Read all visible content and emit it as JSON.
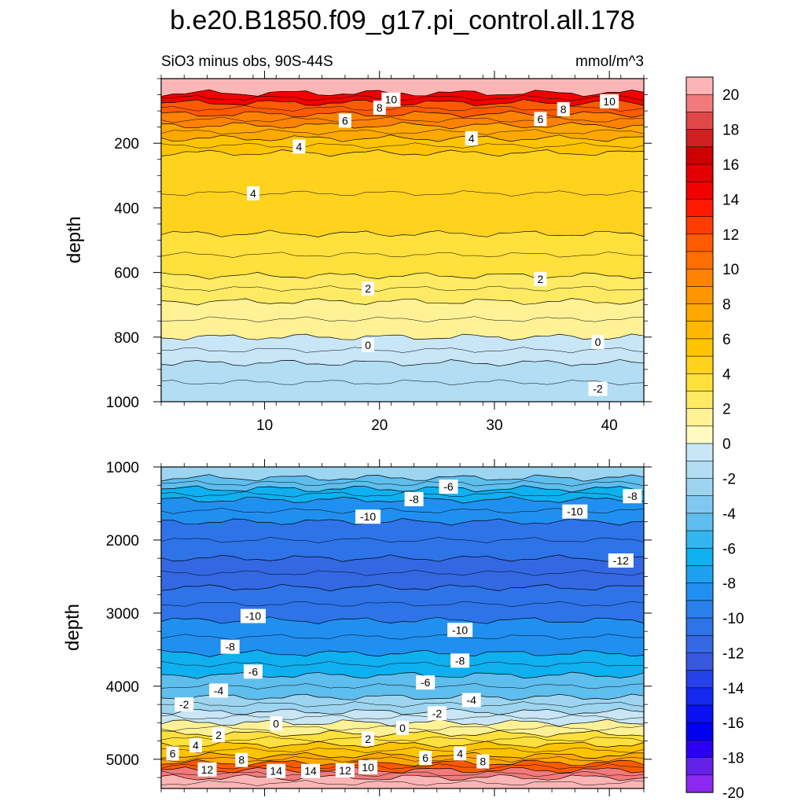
{
  "chart_data": [
    {
      "type": "contour",
      "panel": "upper",
      "title": "b.e20.B1850.f09_g17.pi_control.all.178",
      "subtitle_left": "SiO3 minus obs, 90S-44S",
      "subtitle_right": "mmol/m^3",
      "xlabel": "",
      "ylabel": "depth",
      "xlim": [
        1,
        43
      ],
      "ylim": [
        1000,
        0
      ],
      "x_ticks": [
        10,
        20,
        30,
        40
      ],
      "x_tick_labels": [
        "10",
        "20",
        "30",
        "40"
      ],
      "y_ticks": [
        200,
        400,
        600,
        800,
        1000
      ],
      "y_tick_labels": [
        "200",
        "400",
        "600",
        "800",
        "1000"
      ],
      "contour_labels": [
        {
          "text": "10",
          "x": 21,
          "y": 65
        },
        {
          "text": "10",
          "x": 40,
          "y": 70
        },
        {
          "text": "8",
          "x": 20,
          "y": 90
        },
        {
          "text": "8",
          "x": 36,
          "y": 95
        },
        {
          "text": "6",
          "x": 17,
          "y": 130
        },
        {
          "text": "6",
          "x": 34,
          "y": 125
        },
        {
          "text": "4",
          "x": 13,
          "y": 210
        },
        {
          "text": "4",
          "x": 28,
          "y": 185
        },
        {
          "text": "4",
          "x": 9,
          "y": 355
        },
        {
          "text": "2",
          "x": 19,
          "y": 650
        },
        {
          "text": "2",
          "x": 34,
          "y": 620
        },
        {
          "text": "0",
          "x": 19,
          "y": 825
        },
        {
          "text": "0",
          "x": 39,
          "y": 815
        },
        {
          "text": "-2",
          "x": 39,
          "y": 960
        }
      ],
      "zones": [
        {
          "level": 20,
          "depth_from": 0,
          "depth_to": 45
        },
        {
          "level": 14,
          "depth_from": 45,
          "depth_to": 75
        },
        {
          "level": 11,
          "depth_from": 75,
          "depth_to": 110
        },
        {
          "level": 9,
          "depth_from": 110,
          "depth_to": 145
        },
        {
          "level": 7,
          "depth_from": 145,
          "depth_to": 185
        },
        {
          "level": 5,
          "depth_from": 185,
          "depth_to": 230
        },
        {
          "level": 4,
          "depth_from": 230,
          "depth_to": 480
        },
        {
          "level": 3,
          "depth_from": 480,
          "depth_to": 610
        },
        {
          "level": 2,
          "depth_from": 610,
          "depth_to": 690
        },
        {
          "level": 1,
          "depth_from": 690,
          "depth_to": 800
        },
        {
          "level": -1,
          "depth_from": 800,
          "depth_to": 880
        },
        {
          "level": -2,
          "depth_from": 880,
          "depth_to": 1000
        }
      ]
    },
    {
      "type": "contour",
      "panel": "lower",
      "xlabel": "",
      "ylabel": "depth",
      "xlim": [
        1,
        43
      ],
      "ylim": [
        5400,
        1000
      ],
      "x_ticks": [
        10,
        20,
        30,
        40
      ],
      "y_ticks": [
        1000,
        2000,
        3000,
        4000,
        5000
      ],
      "y_tick_labels": [
        "1000",
        "2000",
        "3000",
        "4000",
        "5000"
      ],
      "contour_labels": [
        {
          "text": "-6",
          "x": 26,
          "y": 1270
        },
        {
          "text": "-8",
          "x": 23,
          "y": 1440
        },
        {
          "text": "-8",
          "x": 42,
          "y": 1400
        },
        {
          "text": "-10",
          "x": 19,
          "y": 1680
        },
        {
          "text": "-10",
          "x": 37,
          "y": 1610
        },
        {
          "text": "-12",
          "x": 41,
          "y": 2280
        },
        {
          "text": "-10",
          "x": 9,
          "y": 3040
        },
        {
          "text": "-10",
          "x": 27,
          "y": 3230
        },
        {
          "text": "-8",
          "x": 7,
          "y": 3460
        },
        {
          "text": "-8",
          "x": 27,
          "y": 3650
        },
        {
          "text": "-6",
          "x": 9,
          "y": 3800
        },
        {
          "text": "-6",
          "x": 24,
          "y": 3950
        },
        {
          "text": "-4",
          "x": 6,
          "y": 4060
        },
        {
          "text": "-4",
          "x": 28,
          "y": 4190
        },
        {
          "text": "-2",
          "x": 3,
          "y": 4250
        },
        {
          "text": "-2",
          "x": 25,
          "y": 4370
        },
        {
          "text": "0",
          "x": 11,
          "y": 4510
        },
        {
          "text": "0",
          "x": 22,
          "y": 4570
        },
        {
          "text": "2",
          "x": 6,
          "y": 4670
        },
        {
          "text": "2",
          "x": 19,
          "y": 4720
        },
        {
          "text": "4",
          "x": 4,
          "y": 4810
        },
        {
          "text": "4",
          "x": 27,
          "y": 4920
        },
        {
          "text": "6",
          "x": 2,
          "y": 4920
        },
        {
          "text": "6",
          "x": 24,
          "y": 4980
        },
        {
          "text": "8",
          "x": 8,
          "y": 5010
        },
        {
          "text": "8",
          "x": 29,
          "y": 5030
        },
        {
          "text": "12",
          "x": 5,
          "y": 5140
        },
        {
          "text": "14",
          "x": 11,
          "y": 5160
        },
        {
          "text": "14",
          "x": 14,
          "y": 5160
        },
        {
          "text": "12",
          "x": 17,
          "y": 5150
        },
        {
          "text": "10",
          "x": 19,
          "y": 5110
        }
      ],
      "zones": [
        {
          "level": -3,
          "depth_from": 1000,
          "depth_to": 1150
        },
        {
          "level": -5,
          "depth_from": 1150,
          "depth_to": 1300
        },
        {
          "level": -7,
          "depth_from": 1300,
          "depth_to": 1450
        },
        {
          "level": -9,
          "depth_from": 1450,
          "depth_to": 1750
        },
        {
          "level": -11,
          "depth_from": 1750,
          "depth_to": 2250
        },
        {
          "level": -12,
          "depth_from": 2250,
          "depth_to": 2650
        },
        {
          "level": -11,
          "depth_from": 2650,
          "depth_to": 3100
        },
        {
          "level": -9,
          "depth_from": 3100,
          "depth_to": 3550
        },
        {
          "level": -7,
          "depth_from": 3550,
          "depth_to": 3850
        },
        {
          "level": -5,
          "depth_from": 3850,
          "depth_to": 4150
        },
        {
          "level": -3,
          "depth_from": 4150,
          "depth_to": 4350
        },
        {
          "level": -1,
          "depth_from": 4350,
          "depth_to": 4500
        },
        {
          "level": 1,
          "depth_from": 4500,
          "depth_to": 4650
        },
        {
          "level": 3,
          "depth_from": 4650,
          "depth_to": 4800
        },
        {
          "level": 5,
          "depth_from": 4800,
          "depth_to": 4950
        },
        {
          "level": 7,
          "depth_from": 4950,
          "depth_to": 5050
        },
        {
          "level": 11,
          "depth_from": 5050,
          "depth_to": 5150
        },
        {
          "level": 19,
          "depth_from": 5150,
          "depth_to": 5250
        },
        {
          "level": 21,
          "depth_from": 5250,
          "depth_to": 5400
        }
      ]
    },
    {
      "type": "colorbar",
      "levels_labeled": [
        "20",
        "18",
        "16",
        "14",
        "12",
        "10",
        "8",
        "6",
        "4",
        "2",
        "0",
        "-2",
        "-4",
        "-6",
        "-8",
        "-10",
        "-12",
        "-14",
        "-16",
        "-18",
        "-20"
      ],
      "colors_top_to_bottom": [
        "#fcb5b5",
        "#f27a7a",
        "#e04848",
        "#d02020",
        "#cc0000",
        "#e20000",
        "#f20000",
        "#ff1a00",
        "#ff3c00",
        "#ff5a00",
        "#ff6e00",
        "#ff8200",
        "#ff9600",
        "#ffa800",
        "#ffb800",
        "#ffc400",
        "#ffd21e",
        "#ffe03c",
        "#ffea64",
        "#fff296",
        "#fffac0",
        "#c8e6f5",
        "#b2ddf3",
        "#9dd5f0",
        "#80c8ef",
        "#5ebeee",
        "#33b5f0",
        "#0fb0f0",
        "#1ea0f0",
        "#2090f0",
        "#2a80ea",
        "#2e74e8",
        "#3468e2",
        "#3858de",
        "#2442e8",
        "#1428ee",
        "#0a10f0",
        "#0000f0",
        "#2a00f0",
        "#6422e8",
        "#8c28f0"
      ]
    }
  ]
}
